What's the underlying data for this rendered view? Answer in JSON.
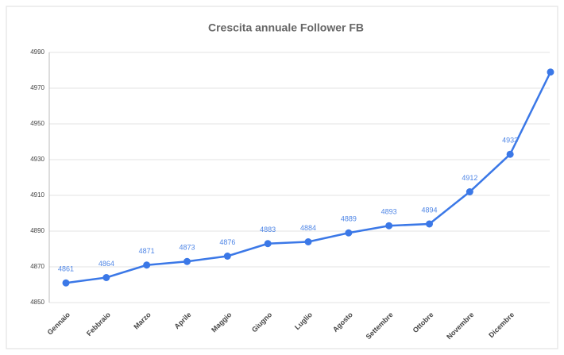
{
  "chart_data": {
    "type": "line",
    "title": "Crescita annuale Follower FB",
    "categories": [
      "Gennaio",
      "Febbraio",
      "Marzo",
      "Aprile",
      "Maggio",
      "Giugno",
      "Luglio",
      "Agosto",
      "Settembre",
      "Ottobre",
      "Novembre",
      "Dicembre",
      null
    ],
    "series": [
      {
        "name": "Follower",
        "color": "#3b78e7",
        "values": [
          4861,
          4864,
          4871,
          4873,
          4876,
          4883,
          4884,
          4889,
          4893,
          4894,
          4912,
          4933,
          4979
        ],
        "value_labels": [
          "4861",
          "4864",
          "4871",
          "4873",
          "4876",
          "4883",
          "4884",
          "4889",
          "4893",
          "4894",
          "4912",
          "4933",
          null
        ]
      }
    ],
    "ylim": [
      4850,
      4990
    ],
    "yticks": [
      4850,
      4870,
      4890,
      4910,
      4930,
      4950,
      4970,
      4990
    ],
    "grid": true
  }
}
